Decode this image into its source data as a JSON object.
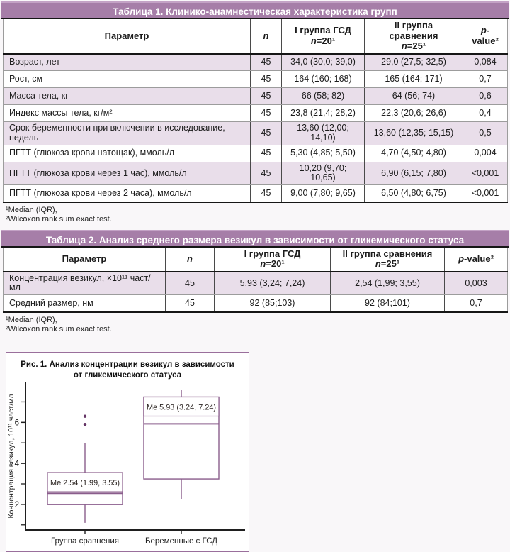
{
  "colors": {
    "title_bar": "#a67ea8",
    "row_tint": "#e9deea",
    "figure_purple": "#8a5d8c",
    "outlier": "#653566",
    "axis": "#1f1f1f"
  },
  "table1": {
    "title": "Таблица 1. Клинико-анамнестическая характеристика групп",
    "header": {
      "param": "Параметр",
      "n": "n",
      "g1_line1": "I группа ГСД",
      "sub_n": "n",
      "g1_sub": "=20¹",
      "g2_line1": "II группа сравнения",
      "g2_sub": "=25¹",
      "p_italic": "p",
      "p_rest": "-value²"
    },
    "rows": [
      {
        "param": "Возраст, лет",
        "n": "45",
        "g1": "34,0 (30,0; 39,0)",
        "g2": "29,0 (27,5; 32,5)",
        "p": "0,084"
      },
      {
        "param": "Рост, см",
        "n": "45",
        "g1": "164 (160; 168)",
        "g2": "165 (164; 171)",
        "p": "0,7"
      },
      {
        "param": "Масса тела, кг",
        "n": "45",
        "g1": "66 (58; 82)",
        "g2": "64 (56; 74)",
        "p": "0,6"
      },
      {
        "param": "Индекс массы тела, кг/м²",
        "n": "45",
        "g1": "23,8 (21,4; 28,2)",
        "g2": "22,3 (20,6; 26,6)",
        "p": "0,4"
      },
      {
        "param": "Срок беременности при включении в исследование, недель",
        "n": "45",
        "g1": "13,60 (12,00; 14,10)",
        "g2": "13,60 (12,35; 15,15)",
        "p": "0,5"
      },
      {
        "param": "ПГТТ (глюкоза крови натощак), ммоль/л",
        "n": "45",
        "g1": "5,30 (4,85; 5,50)",
        "g2": "4,70 (4,50; 4,80)",
        "p": "0,004"
      },
      {
        "param": "ПГТТ (глюкоза крови через 1 час), ммоль/л",
        "n": "45",
        "g1": "10,20 (9,70; 10,65)",
        "g2": "6,90 (6,15; 7,80)",
        "p": "<0,001"
      },
      {
        "param": "ПГТТ (глюкоза крови через 2 часа), ммоль/л",
        "n": "45",
        "g1": "9,00 (7,80; 9,65)",
        "g2": "6,50 (4,80; 6,75)",
        "p": "<0,001"
      }
    ],
    "footnotes": [
      "¹Median (IQR),",
      "²Wilcoxon rank sum exact test."
    ]
  },
  "table2": {
    "title": "Таблица 2. Анализ среднего размера везикул в зависимости от гликемического статуса",
    "header": {
      "param": "Параметр",
      "n": "n",
      "g1_line1": "I группа ГСД",
      "sub_n": "n",
      "g1_sub": "=20¹",
      "g2_line1": "II группа сравнения",
      "g2_sub": "=25¹",
      "p_italic": "p",
      "p_rest": "-value²"
    },
    "rows": [
      {
        "param": "Концентрация везикул, ×10¹¹ част/мл",
        "n": "45",
        "g1": "5,93 (3,24; 7,24)",
        "g2": "2,54 (1,99; 3,55)",
        "p": "0,003"
      },
      {
        "param": "Средний размер, нм",
        "n": "45",
        "g1": "92 (85;103)",
        "g2": "92 (84;101)",
        "p": "0,7"
      }
    ],
    "footnotes": [
      "¹Median (IQR),",
      "²Wilcoxon rank sum exact test."
    ]
  },
  "figure": {
    "title_line1": "Рис. 1. Анализ концентрации везикул в зависимости",
    "title_line2": "от гликемического статуса"
  },
  "chart_data": {
    "type": "boxplot",
    "title": "Рис. 1. Анализ концентрации везикул в зависимости от гликемического статуса",
    "ylabel": "Концентрация везикул, 10¹¹ част/мл",
    "ylim": [
      0.75,
      7.95
    ],
    "yticks_labeled": [
      2,
      4,
      6
    ],
    "yticks_minor": [
      1,
      3,
      5,
      7
    ],
    "categories": [
      "Группа сравнения",
      "Беременные с ГСД"
    ],
    "series": [
      {
        "name": "Группа сравнения",
        "median": 2.54,
        "q1": 1.99,
        "q3": 3.55,
        "whisker_low": 1.1,
        "whisker_high": 5.0,
        "outliers": [
          5.9,
          6.3
        ],
        "annotation": "Me 2.54 (1.99, 3.55)"
      },
      {
        "name": "Беременные с ГСД",
        "median": 5.93,
        "q1": 3.24,
        "q3": 7.24,
        "whisker_low": 2.25,
        "whisker_high": 7.6,
        "outliers": [],
        "annotation": "Me 5.93 (3.24, 7.24)"
      }
    ],
    "legend": "none",
    "grid": false
  }
}
